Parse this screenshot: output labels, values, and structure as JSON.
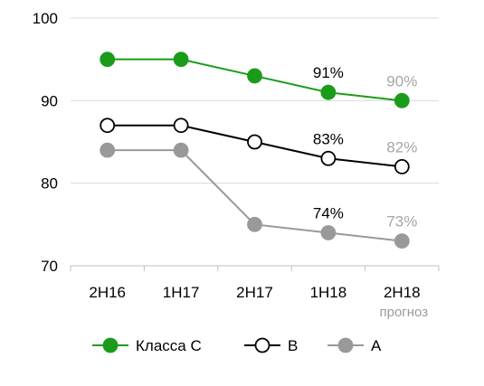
{
  "chart_data": {
    "type": "line",
    "categories": [
      "2H16",
      "1H17",
      "2H17",
      "1H18",
      "2H18"
    ],
    "category_sublabels": [
      "",
      "",
      "",
      "",
      "прогноз"
    ],
    "ylim": [
      70,
      100
    ],
    "yticks": [
      70,
      80,
      90,
      100
    ],
    "grid": true,
    "legend_position": "bottom",
    "series": [
      {
        "name": "Класса С",
        "values": [
          95,
          95,
          93,
          91,
          90
        ],
        "line_color": "#1a9c1a",
        "marker_fill": "#1a9c1a",
        "marker_stroke": "#1a9c1a",
        "labels": [
          {
            "index": 3,
            "text": "91%",
            "color": "#000000"
          },
          {
            "index": 4,
            "text": "90%",
            "color": "#a6a6a6"
          }
        ]
      },
      {
        "name": "В",
        "values": [
          87,
          87,
          85,
          83,
          82
        ],
        "line_color": "#000000",
        "marker_fill": "#ffffff",
        "marker_stroke": "#000000",
        "labels": [
          {
            "index": 3,
            "text": "83%",
            "color": "#000000"
          },
          {
            "index": 4,
            "text": "82%",
            "color": "#a6a6a6"
          }
        ]
      },
      {
        "name": "А",
        "values": [
          84,
          84,
          75,
          74,
          73
        ],
        "line_color": "#999999",
        "marker_fill": "#999999",
        "marker_stroke": "#999999",
        "labels": [
          {
            "index": 3,
            "text": "74%",
            "color": "#000000"
          },
          {
            "index": 4,
            "text": "73%",
            "color": "#a6a6a6"
          }
        ]
      }
    ]
  }
}
